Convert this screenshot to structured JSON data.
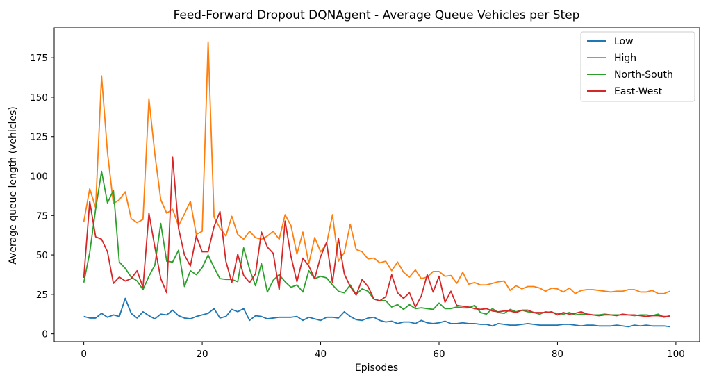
{
  "chart_data": {
    "type": "line",
    "title": "Feed-Forward Dropout DQNAgent - Average Queue Vehicles per Step",
    "xlabel": "Episodes",
    "ylabel": "Average queue length (vehicles)",
    "xlim": [
      -5,
      104
    ],
    "ylim": [
      -5,
      194
    ],
    "xticks": [
      0,
      20,
      40,
      60,
      80,
      100
    ],
    "yticks": [
      0,
      25,
      50,
      75,
      100,
      125,
      150,
      175
    ],
    "grid": false,
    "legend_position": "top-right",
    "series": [
      {
        "name": "Low",
        "color": "#1f77b4",
        "values": [
          11,
          10,
          10,
          13,
          10.5,
          12,
          11,
          22.5,
          13,
          10,
          14,
          11.5,
          9.5,
          12.5,
          12,
          15,
          11.5,
          10,
          9.5,
          11,
          12,
          13,
          16,
          10,
          11,
          15.5,
          14,
          16,
          8.5,
          11.5,
          11,
          9.5,
          10,
          10.5,
          10.5,
          10.5,
          11,
          8.5,
          10.5,
          9.5,
          8.5,
          10.5,
          10.5,
          10,
          14,
          11,
          9,
          8.5,
          10,
          10.5,
          8.5,
          7.5,
          8,
          6.5,
          7.5,
          7.5,
          6.5,
          8.5,
          7,
          6.5,
          7,
          8,
          6.5,
          6.5,
          7,
          6.5,
          6.5,
          6,
          6,
          5,
          6.5,
          6,
          5.5,
          5.5,
          6,
          6.5,
          6,
          5.5,
          5.5,
          5.5,
          5.5,
          6,
          6,
          5.5,
          5,
          5.5,
          5.5,
          5,
          5,
          5,
          5.5,
          5,
          4.5,
          5.5,
          5,
          5.5,
          5,
          5,
          5,
          4.5
        ]
      },
      {
        "name": "High",
        "color": "#ff7f0e",
        "values": [
          71,
          92,
          80,
          163.5,
          115,
          82.5,
          85,
          90,
          73,
          70.5,
          72.5,
          149,
          114,
          85,
          76.5,
          79,
          68.5,
          76,
          84,
          63,
          65,
          185,
          74,
          67,
          62,
          74.5,
          63,
          60,
          65,
          61,
          60,
          62,
          65,
          60,
          75.5,
          68.5,
          50.5,
          64.5,
          44.5,
          61,
          52,
          57,
          75.5,
          46,
          51.5,
          69.5,
          53.5,
          52,
          47.5,
          48,
          45,
          46,
          40,
          45.5,
          39,
          36,
          40.5,
          35,
          36,
          39.5,
          39.5,
          36.5,
          37,
          32,
          39,
          31.5,
          32.5,
          31,
          31,
          32,
          33,
          33.5,
          27.5,
          30.5,
          28.5,
          30,
          30,
          29,
          27,
          29,
          28.5,
          26.5,
          29,
          25.5,
          27.5,
          28,
          28,
          27.5,
          27,
          26.5,
          27,
          27,
          28,
          28,
          26.5,
          26.5,
          27.5,
          25.5,
          25.5,
          27
        ]
      },
      {
        "name": "North-South",
        "color": "#2ca02c",
        "values": [
          32.5,
          51.5,
          79,
          103,
          83,
          91,
          45.5,
          41.5,
          36,
          33.5,
          28,
          36.5,
          43.5,
          70,
          46,
          45.5,
          53,
          30,
          40,
          37.5,
          42,
          50,
          42,
          35,
          34.5,
          34.5,
          33,
          54.5,
          41,
          30.5,
          44.5,
          26.5,
          34,
          37.5,
          33,
          29.5,
          31,
          26.5,
          40,
          35,
          36.5,
          35.5,
          31,
          27,
          26,
          31,
          25,
          28.5,
          27,
          22,
          21,
          21,
          17,
          18.5,
          15.5,
          18.5,
          16,
          16.5,
          16,
          15.5,
          19.5,
          16,
          16,
          17,
          16.5,
          16.5,
          18,
          13.5,
          12.5,
          16,
          13.5,
          13,
          15.5,
          14,
          15,
          14,
          13.5,
          12.5,
          14,
          13.5,
          13,
          12.5,
          13.5,
          12,
          12.5,
          12.5,
          12,
          12,
          12.5,
          12,
          12,
          12,
          12,
          11.5,
          12,
          12,
          11.5,
          12.5,
          10.5,
          11.5
        ]
      },
      {
        "name": "East-West",
        "color": "#d62728",
        "values": [
          35.5,
          84,
          61.5,
          60,
          52,
          32,
          36,
          33.5,
          35,
          40,
          29.5,
          76.5,
          55,
          35,
          26,
          112,
          67,
          50,
          43,
          62,
          52,
          52,
          68,
          77.5,
          46,
          32.5,
          50.5,
          37,
          32.5,
          38,
          64.5,
          55,
          51,
          28,
          71.5,
          49,
          33,
          48,
          43,
          35,
          49,
          58,
          32.5,
          60.5,
          38,
          30,
          24.5,
          34.5,
          30,
          22,
          21,
          23.5,
          37.5,
          26,
          22.5,
          26,
          17,
          24,
          37.5,
          26.5,
          36.5,
          20,
          27,
          18,
          17.5,
          17,
          16,
          15.5,
          16,
          14.5,
          14,
          14.5,
          14.5,
          13.5,
          15,
          15,
          13.5,
          13.5,
          13.5,
          14,
          12,
          13.5,
          12.5,
          13,
          14,
          12.5,
          12,
          11.5,
          12,
          12,
          11.5,
          12.5,
          12,
          12,
          11.5,
          11,
          11.5,
          11.5,
          11,
          11
        ]
      }
    ]
  }
}
